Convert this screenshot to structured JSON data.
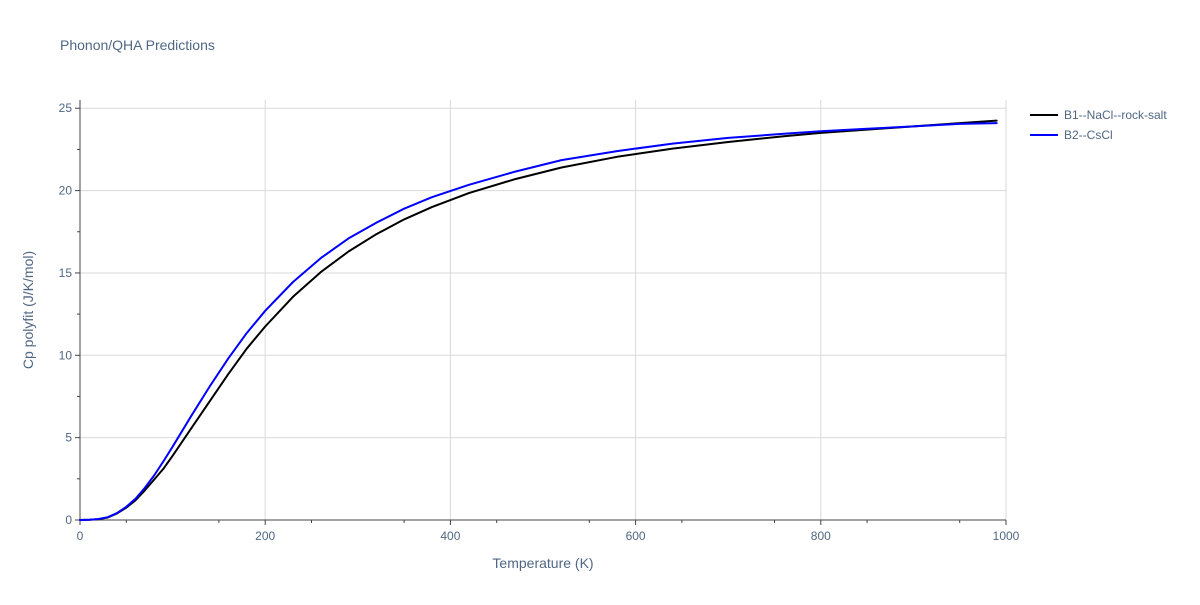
{
  "chart_data": {
    "type": "line",
    "title": "Phonon/QHA Predictions",
    "xlabel": "Temperature (K)",
    "ylabel": "Cp polyfit (J/K/mol)",
    "xlim": [
      0,
      1000
    ],
    "ylim": [
      0,
      25.5
    ],
    "x_ticks": [
      0,
      200,
      400,
      600,
      800,
      1000
    ],
    "y_ticks": [
      0,
      5,
      10,
      15,
      20,
      25
    ],
    "x_tick_labels": [
      "0",
      "200",
      "400",
      "600",
      "800",
      "1000"
    ],
    "y_tick_labels": [
      "0",
      "5",
      "10",
      "15",
      "20",
      "25"
    ],
    "grid": true,
    "legend_position": "top-right",
    "colors": {
      "axis_text": "#506784",
      "grid": "#d9d9d9",
      "zero_line": "#444444"
    },
    "series": [
      {
        "name": "B1--NaCl--rock-salt",
        "color": "#000000",
        "x": [
          0,
          10,
          20,
          30,
          40,
          50,
          60,
          70,
          80,
          90,
          100,
          120,
          140,
          160,
          180,
          200,
          230,
          260,
          290,
          320,
          350,
          380,
          420,
          470,
          520,
          580,
          640,
          700,
          760,
          800,
          850,
          900,
          950,
          990
        ],
        "y": [
          0,
          0.01,
          0.05,
          0.15,
          0.4,
          0.75,
          1.2,
          1.8,
          2.45,
          3.1,
          3.9,
          5.55,
          7.2,
          8.85,
          10.4,
          11.75,
          13.55,
          15.05,
          16.3,
          17.35,
          18.25,
          19.0,
          19.85,
          20.7,
          21.4,
          22.05,
          22.55,
          22.95,
          23.3,
          23.5,
          23.7,
          23.9,
          24.1,
          24.25
        ]
      },
      {
        "name": "B2--CsCl",
        "color": "#0000ff",
        "x": [
          0,
          10,
          20,
          30,
          40,
          50,
          60,
          70,
          80,
          90,
          100,
          120,
          140,
          160,
          180,
          200,
          230,
          260,
          290,
          320,
          350,
          380,
          420,
          470,
          520,
          580,
          640,
          700,
          760,
          800,
          850,
          900,
          950,
          990
        ],
        "y": [
          0,
          0.01,
          0.06,
          0.17,
          0.42,
          0.8,
          1.3,
          1.95,
          2.7,
          3.55,
          4.45,
          6.3,
          8.1,
          9.8,
          11.35,
          12.7,
          14.45,
          15.9,
          17.1,
          18.05,
          18.9,
          19.6,
          20.35,
          21.15,
          21.85,
          22.4,
          22.85,
          23.2,
          23.45,
          23.6,
          23.75,
          23.9,
          24.05,
          24.1
        ]
      }
    ]
  }
}
